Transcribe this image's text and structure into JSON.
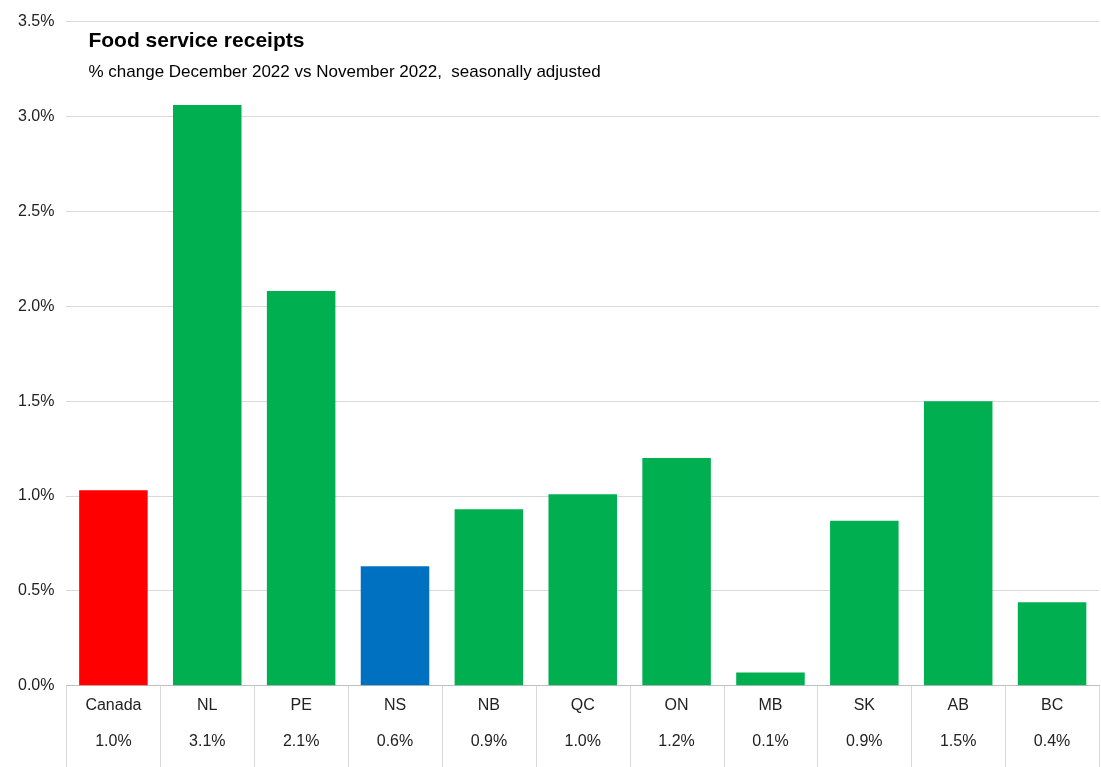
{
  "chart_data": {
    "type": "bar",
    "title": "Food service receipts",
    "subtitle": "% change December 2022 vs November 2022,  seasonally adjusted",
    "categories": [
      "Canada",
      "NL",
      "PE",
      "NS",
      "NB",
      "QC",
      "ON",
      "MB",
      "SK",
      "AB",
      "BC"
    ],
    "values": [
      1.03,
      3.06,
      2.08,
      0.63,
      0.93,
      1.01,
      1.2,
      0.07,
      0.87,
      1.5,
      0.44
    ],
    "colors": [
      "#ff0000",
      "#00b050",
      "#00b050",
      "#0070c0",
      "#00b050",
      "#00b050",
      "#00b050",
      "#00b050",
      "#00b050",
      "#00b050",
      "#00b050"
    ],
    "value_labels": [
      "1.0%",
      "3.1%",
      "2.1%",
      "0.6%",
      "0.9%",
      "1.0%",
      "1.2%",
      "0.1%",
      "0.9%",
      "1.5%",
      "0.4%"
    ],
    "ylim": [
      0,
      3.5
    ],
    "yticks": [
      {
        "value": 0,
        "label": "0.0%"
      },
      {
        "value": 0.5,
        "label": "0.5%"
      },
      {
        "value": 1,
        "label": "1.0%"
      },
      {
        "value": 1.5,
        "label": "1.5%"
      },
      {
        "value": 2,
        "label": "2.0%"
      },
      {
        "value": 2.5,
        "label": "2.5%"
      },
      {
        "value": 3,
        "label": "3.0%"
      },
      {
        "value": 3.5,
        "label": "3.5%"
      }
    ],
    "grid": "y",
    "legend": false
  }
}
